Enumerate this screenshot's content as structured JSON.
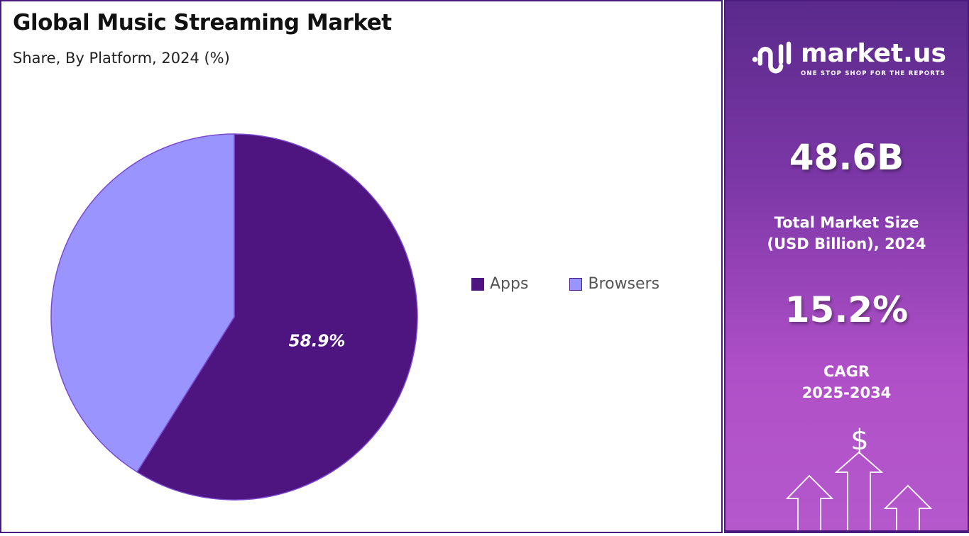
{
  "title": "Global Music Streaming Market",
  "subtitle": "Share, By Platform, 2024 (%)",
  "chart_data": {
    "type": "pie",
    "title": "Global Music Streaming Market",
    "subtitle": "Share, By Platform, 2024 (%)",
    "categories": [
      "Apps",
      "Browsers"
    ],
    "values": [
      58.9,
      41.1
    ],
    "colors": [
      "#4e1580",
      "#9a94ff"
    ],
    "data_labels": [
      "58.9%",
      ""
    ],
    "legend_placement": "right"
  },
  "panel": {
    "brand": "market.us",
    "tagline": "ONE STOP SHOP FOR THE REPORTS",
    "market_size": "48.6B",
    "market_size_label": "Total Market Size",
    "market_size_label2": "(USD Billion), 2024",
    "cagr": "15.2%",
    "cagr_label": "CAGR",
    "cagr_period": "2025-2034",
    "dollar": "$"
  }
}
